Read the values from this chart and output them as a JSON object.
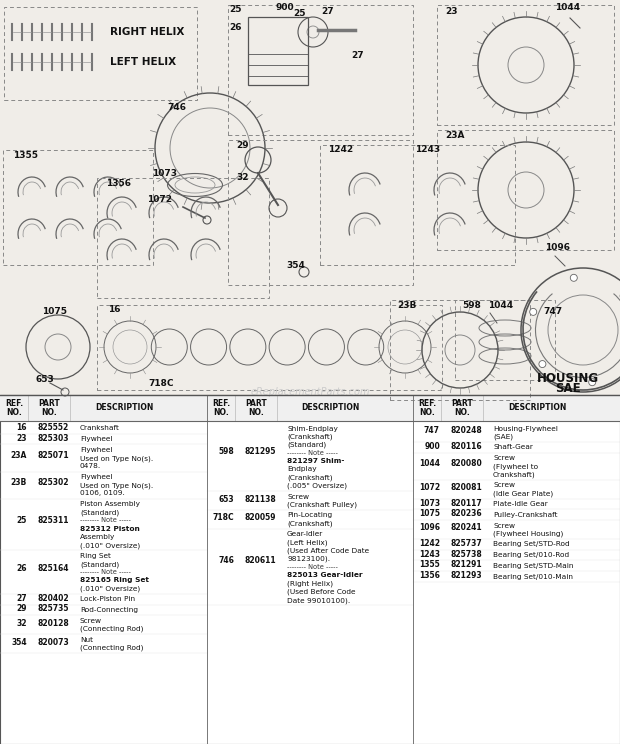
{
  "bg_color": "#f0ede8",
  "diagram_bg": "#f0ede8",
  "table_bg": "#ffffff",
  "text_color": "#111111",
  "watermark": "eReplacementParts.com",
  "table_split": 0.447,
  "col_splits": [
    0.333,
    0.666
  ],
  "helix_labels": [
    "RIGHT HELIX",
    "LEFT HELIX"
  ],
  "col1_parts": [
    {
      "ref": "16",
      "part": "825552",
      "desc": [
        [
          "Crankshaft",
          false
        ]
      ]
    },
    {
      "ref": "23",
      "part": "825303",
      "desc": [
        [
          "Flywheel",
          false
        ]
      ]
    },
    {
      "ref": "23A",
      "part": "825071",
      "desc": [
        [
          "Flywheel",
          false
        ],
        [
          "Used on Type No(s).",
          false
        ],
        [
          "0478.",
          false
        ]
      ]
    },
    {
      "ref": "23B",
      "part": "825302",
      "desc": [
        [
          "Flywheel",
          false
        ],
        [
          "Used on Type No(s).",
          false
        ],
        [
          "0106, 0109.",
          false
        ]
      ]
    },
    {
      "ref": "25",
      "part": "825311",
      "desc": [
        [
          "Piston Assembly",
          false
        ],
        [
          "(Standard)",
          false
        ],
        [
          "-------- Note -----",
          "note"
        ],
        [
          "825312 Piston",
          "bold_num"
        ],
        [
          "Assembly",
          false
        ],
        [
          "(.010\" Oversize)",
          false
        ]
      ]
    },
    {
      "ref": "26",
      "part": "825164",
      "desc": [
        [
          "Ring Set",
          false
        ],
        [
          "(Standard)",
          false
        ],
        [
          "-------- Note -----",
          "note"
        ],
        [
          "825165 Ring Set",
          "bold_num"
        ],
        [
          "(.010\" Oversize)",
          false
        ]
      ]
    },
    {
      "ref": "27",
      "part": "820402",
      "desc": [
        [
          "Lock-Piston Pin",
          false
        ]
      ]
    },
    {
      "ref": "29",
      "part": "825735",
      "desc": [
        [
          "Rod-Connecting",
          false
        ]
      ]
    },
    {
      "ref": "32",
      "part": "820128",
      "desc": [
        [
          "Screw",
          false
        ],
        [
          "(Connecting Rod)",
          false
        ]
      ]
    },
    {
      "ref": "354",
      "part": "820073",
      "desc": [
        [
          "Nut",
          false
        ],
        [
          "(Connecting Rod)",
          false
        ]
      ]
    }
  ],
  "col2_parts": [
    {
      "ref": "598",
      "part": "821295",
      "desc": [
        [
          "Shim-Endplay",
          false
        ],
        [
          "(Crankshaft)",
          false
        ],
        [
          "(Standard)",
          false
        ],
        [
          "-------- Note -----",
          "note"
        ],
        [
          "821297 Shim-",
          "bold_num"
        ],
        [
          "Endplay",
          false
        ],
        [
          "(Crankshaft)",
          false
        ],
        [
          "(.005\" Oversize)",
          false
        ]
      ]
    },
    {
      "ref": "653",
      "part": "821138",
      "desc": [
        [
          "Screw",
          false
        ],
        [
          "(Crankshaft Pulley)",
          false
        ]
      ]
    },
    {
      "ref": "718C",
      "part": "820059",
      "desc": [
        [
          "Pin-Locating",
          false
        ],
        [
          "(Crankshaft)",
          false
        ]
      ]
    },
    {
      "ref": "746",
      "part": "820611",
      "desc": [
        [
          "Gear-Idler",
          false
        ],
        [
          "(Left Helix)",
          false
        ],
        [
          "(Used After Code Date",
          false
        ],
        [
          "98123100).",
          false
        ],
        [
          "-------- Note -----",
          "note"
        ],
        [
          "825013 Gear-Idler",
          "bold_num"
        ],
        [
          "(Right Helix)",
          false
        ],
        [
          "(Used Before Code",
          false
        ],
        [
          "Date 99010100).",
          false
        ]
      ]
    }
  ],
  "col3_parts": [
    {
      "ref": "747",
      "part": "820248",
      "desc": [
        [
          "Housing-Flywheel",
          false
        ],
        [
          "(SAE)",
          false
        ]
      ]
    },
    {
      "ref": "900",
      "part": "820116",
      "desc": [
        [
          "Shaft-Gear",
          false
        ]
      ]
    },
    {
      "ref": "1044",
      "part": "820080",
      "desc": [
        [
          "Screw",
          false
        ],
        [
          "(Flywheel to",
          false
        ],
        [
          "Crankshaft)",
          false
        ]
      ]
    },
    {
      "ref": "1072",
      "part": "820081",
      "desc": [
        [
          "Screw",
          false
        ],
        [
          "(Idle Gear Plate)",
          false
        ]
      ]
    },
    {
      "ref": "1073",
      "part": "820117",
      "desc": [
        [
          "Plate-Idle Gear",
          false
        ]
      ]
    },
    {
      "ref": "1075",
      "part": "820236",
      "desc": [
        [
          "Pulley-Crankshaft",
          false
        ]
      ]
    },
    {
      "ref": "1096",
      "part": "820241",
      "desc": [
        [
          "Screw",
          false
        ],
        [
          "(Flywheel Housing)",
          false
        ]
      ]
    },
    {
      "ref": "1242",
      "part": "825737",
      "desc": [
        [
          "Bearing Set/STD-Rod",
          false
        ]
      ]
    },
    {
      "ref": "1243",
      "part": "825738",
      "desc": [
        [
          "Bearing Set/010-Rod",
          false
        ]
      ]
    },
    {
      "ref": "1355",
      "part": "821291",
      "desc": [
        [
          "Bearing Set/STD-Main",
          false
        ]
      ]
    },
    {
      "ref": "1356",
      "part": "821293",
      "desc": [
        [
          "Bearing Set/010-Main",
          false
        ]
      ]
    }
  ]
}
